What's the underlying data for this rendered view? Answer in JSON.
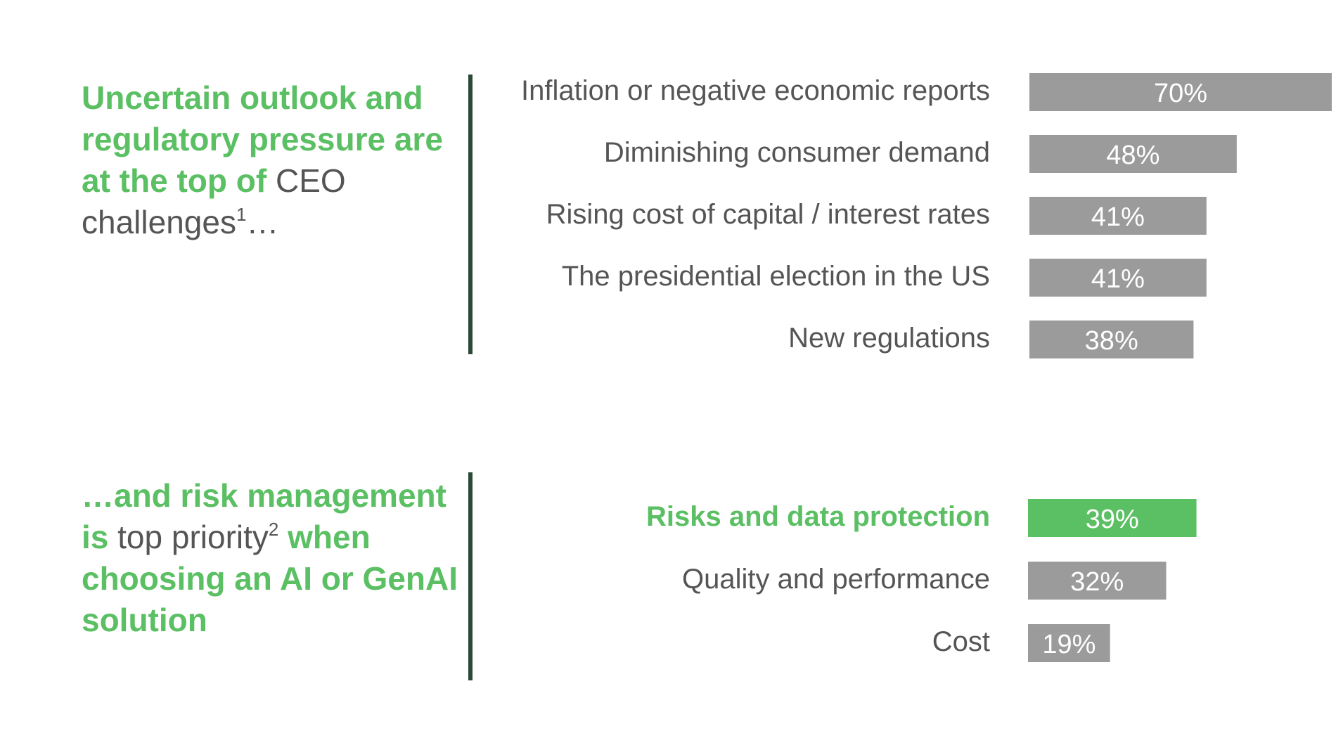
{
  "headline_top": {
    "part1": "Uncertain outlook and regulatory pressure are at the top of",
    "part2": "CEO challenges",
    "sup": "1",
    "part3": "…"
  },
  "headline_bottom": {
    "part1": "…and risk management is",
    "part2": "top priority",
    "sup": "2",
    "part3": "when choosing an AI or GenAI solution"
  },
  "colors": {
    "bar": "#9b9b9b",
    "highlight": "#5bbf63",
    "text": "#555555",
    "divider": "#2a4a35"
  },
  "chart_data": [
    {
      "type": "bar",
      "orientation": "horizontal",
      "categories": [
        "Inflation or negative economic reports",
        "Diminishing consumer demand",
        "Rising cost of capital / interest rates",
        "The presidential election in the US",
        "New regulations"
      ],
      "values": [
        70,
        48,
        41,
        41,
        38
      ],
      "value_labels": [
        "70%",
        "48%",
        "41%",
        "41%",
        "38%"
      ],
      "highlight": [],
      "xlim": [
        0,
        70
      ]
    },
    {
      "type": "bar",
      "orientation": "horizontal",
      "categories": [
        "Risks and data protection",
        "Quality and performance",
        "Cost"
      ],
      "values": [
        39,
        32,
        19
      ],
      "value_labels": [
        "39%",
        "32%",
        "19%"
      ],
      "highlight": [
        0
      ],
      "xlim": [
        0,
        70
      ]
    }
  ]
}
